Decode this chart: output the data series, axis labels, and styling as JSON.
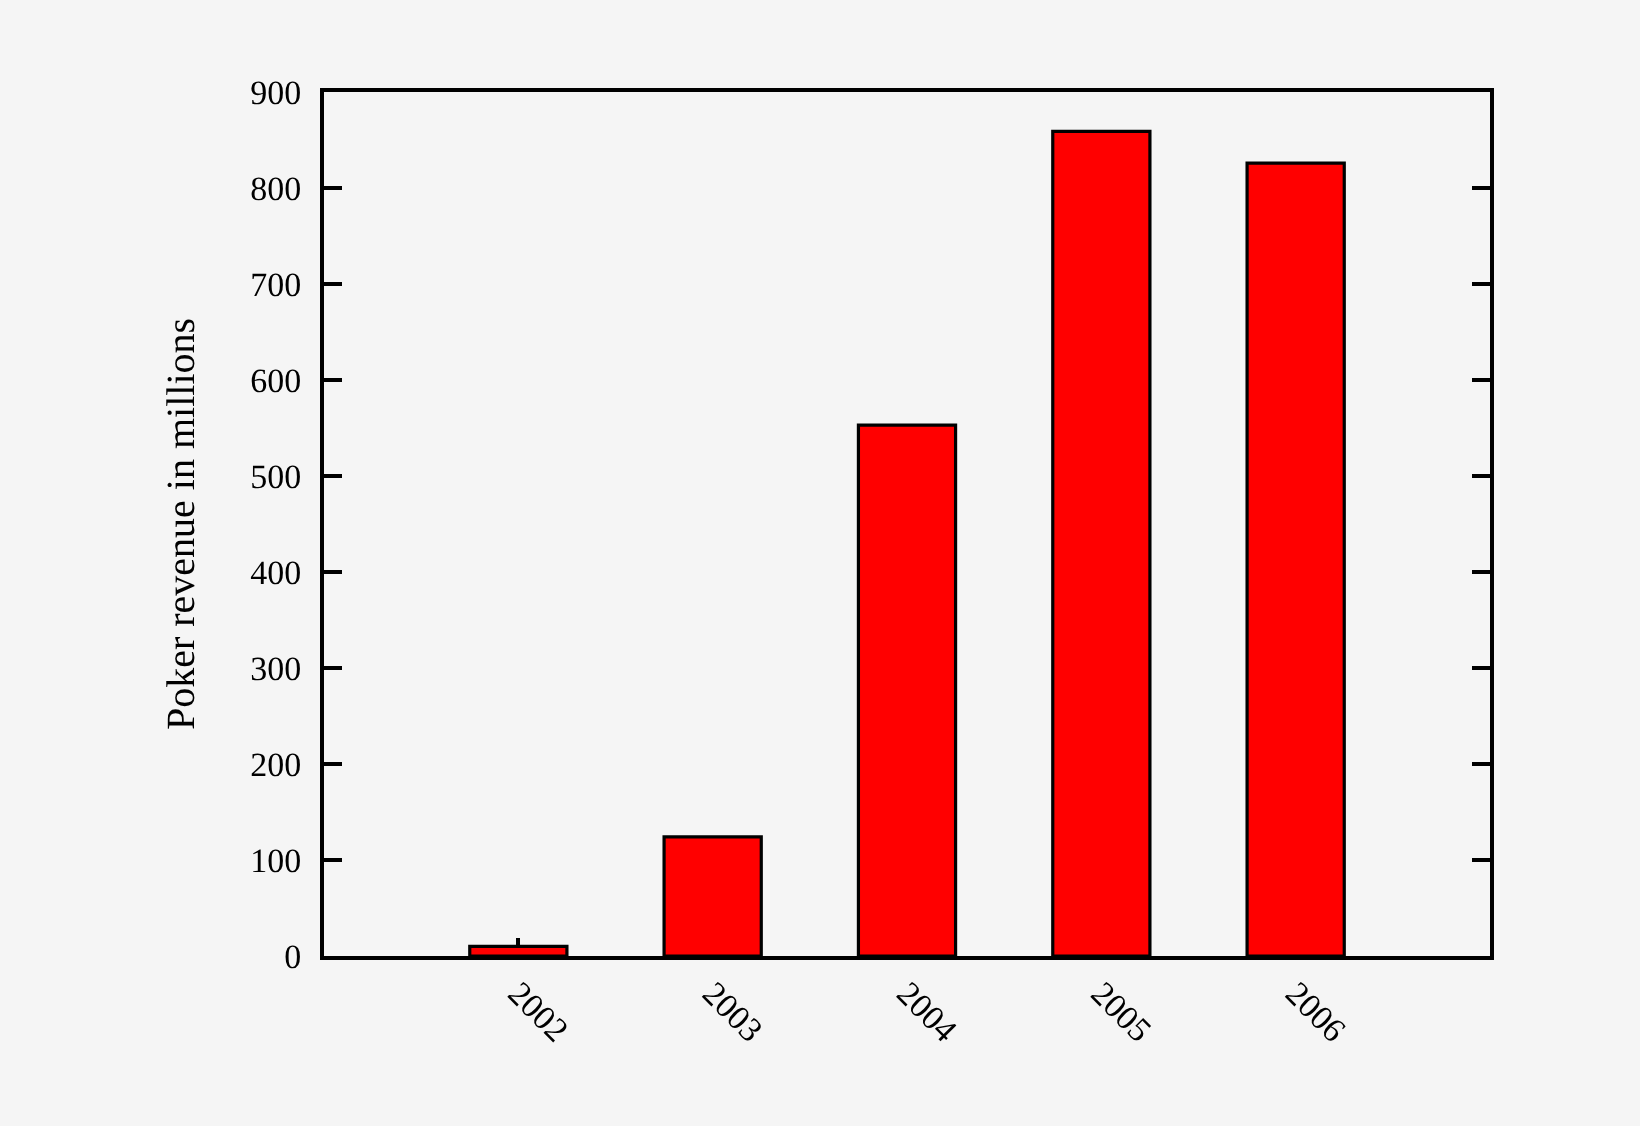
{
  "chart_data": {
    "type": "bar",
    "ylabel": "Poker revenue in millions",
    "categories": [
      "2002",
      "2003",
      "2004",
      "2005",
      "2006"
    ],
    "values": [
      10,
      124,
      553,
      859,
      826
    ],
    "color": "#ff0000",
    "ylim": [
      0,
      900
    ],
    "yticks": [
      0,
      100,
      200,
      300,
      400,
      500,
      600,
      700,
      800,
      900
    ]
  }
}
